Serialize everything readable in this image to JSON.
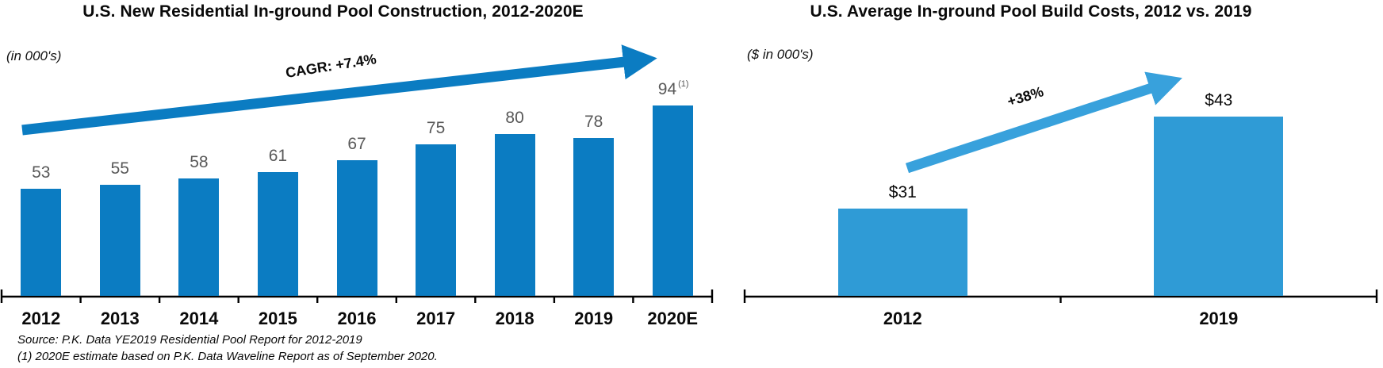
{
  "chart_data": [
    {
      "type": "bar",
      "title": "U.S. New Residential In-ground Pool Construction, 2012-2020E",
      "units_label": "(in 000's)",
      "categories": [
        "2012",
        "2013",
        "2014",
        "2015",
        "2016",
        "2017",
        "2018",
        "2019",
        "2020E"
      ],
      "values": [
        53,
        55,
        58,
        61,
        67,
        75,
        80,
        78,
        94
      ],
      "value_labels": [
        "53",
        "55",
        "58",
        "61",
        "67",
        "75",
        "80",
        "78",
        "94"
      ],
      "last_value_footnote_marker": "(1)",
      "trend_annotation": "CAGR: +7.4%",
      "xlabel": "",
      "ylabel": "",
      "ylim": [
        0,
        100
      ],
      "grid": false,
      "legend": false,
      "bar_color": "#0b7cc2",
      "arrow_color": "#0b7cc2",
      "value_label_color": "#595959",
      "axis_color": "#000000"
    },
    {
      "type": "bar",
      "title": "U.S. Average In-ground Pool Build Costs, 2012 vs. 2019",
      "units_label": "($ in 000's)",
      "categories": [
        "2012",
        "2019"
      ],
      "values": [
        31,
        43
      ],
      "value_labels": [
        "$31",
        "$43"
      ],
      "trend_annotation": "+38%",
      "xlabel": "",
      "ylabel": "",
      "grid": false,
      "legend": false,
      "bar_color": "#2f9bd6",
      "arrow_color": "#38a1dc",
      "value_label_color": "#0a0a0a",
      "axis_color": "#000000"
    }
  ],
  "footnotes": [
    "Source: P.K. Data YE2019 Residential Pool Report for 2012-2019",
    "(1) 2020E estimate based on P.K. Data Waveline Report as of September 2020."
  ]
}
